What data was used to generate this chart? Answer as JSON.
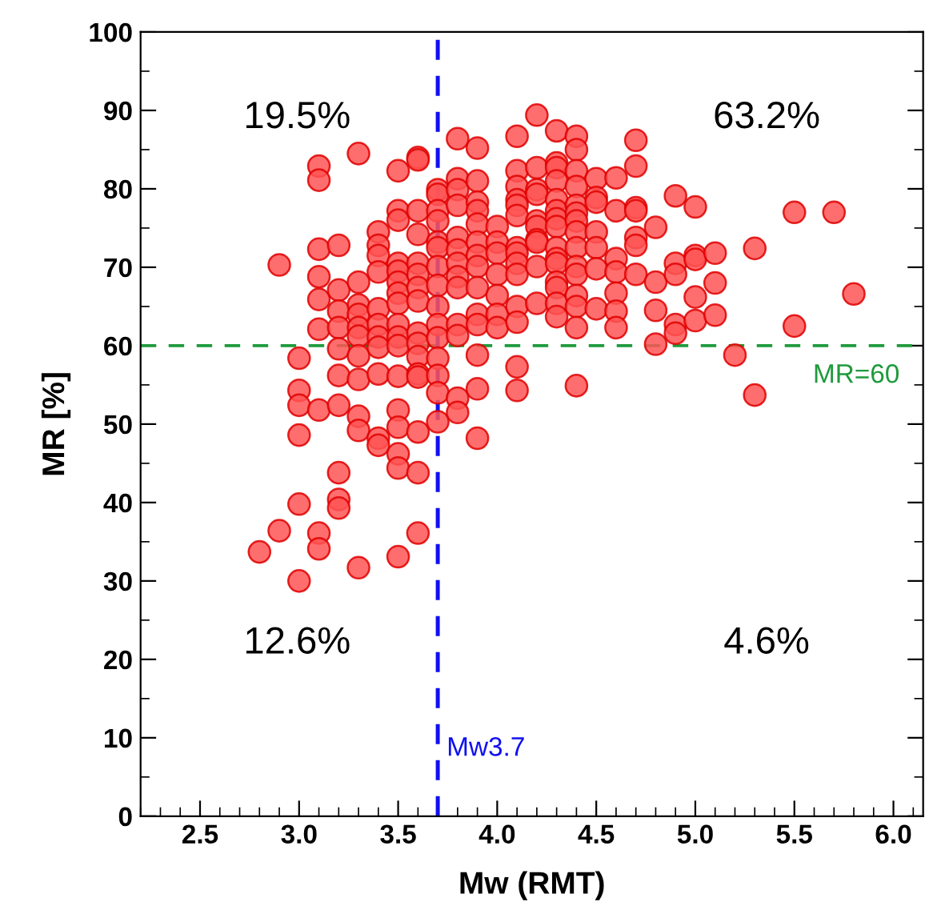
{
  "chart_data": {
    "type": "scatter",
    "xlabel": "Mw (RMT)",
    "ylabel": "MR [%]",
    "marker": "circle",
    "grid": false,
    "legend": false,
    "xlim": [
      2.2,
      6.15
    ],
    "ylim": [
      0,
      100
    ],
    "xticks": [
      {
        "value": 2.5,
        "label": "2.5"
      },
      {
        "value": 3.0,
        "label": "3.0"
      },
      {
        "value": 3.5,
        "label": "3.5"
      },
      {
        "value": 4.0,
        "label": "4.0"
      },
      {
        "value": 4.5,
        "label": "4.5"
      },
      {
        "value": 5.0,
        "label": "5.0"
      },
      {
        "value": 5.5,
        "label": "5.5"
      },
      {
        "value": 6.0,
        "label": "6.0"
      }
    ],
    "yticks": [
      0,
      10,
      20,
      30,
      40,
      50,
      60,
      70,
      80,
      90,
      100
    ],
    "annotations": [
      "19.5%",
      "63.2%",
      "12.6%",
      "4.6%"
    ],
    "ref_lines": [
      {
        "axis": "y",
        "value": 60,
        "label": "MR=60",
        "color": "#1e9a3c",
        "line_style": "dashed"
      },
      {
        "axis": "x",
        "value": 3.7,
        "label": "Mw3.7",
        "color": "#1010f0",
        "line_style": "dashed"
      }
    ],
    "series": [
      {
        "color": "#ff5555",
        "x": [
          2.8,
          2.9,
          2.9,
          3.0,
          3.0,
          3.0,
          3.0,
          3.0,
          3.0,
          3.1,
          3.1,
          3.1,
          3.1,
          3.1,
          3.1,
          3.1,
          3.1,
          3.1,
          3.2,
          3.2,
          3.2,
          3.2,
          3.2,
          3.2,
          3.2,
          3.2,
          3.2,
          3.2,
          3.3,
          3.3,
          3.3,
          3.3,
          3.3,
          3.3,
          3.3,
          3.3,
          3.3,
          3.3,
          3.3,
          3.4,
          3.4,
          3.4,
          3.4,
          3.4,
          3.4,
          3.4,
          3.4,
          3.4,
          3.4,
          3.4,
          3.5,
          3.5,
          3.5,
          3.5,
          3.5,
          3.5,
          3.5,
          3.5,
          3.5,
          3.5,
          3.5,
          3.5,
          3.5,
          3.5,
          3.5,
          3.5,
          3.5,
          3.6,
          3.6,
          3.6,
          3.6,
          3.6,
          3.6,
          3.6,
          3.6,
          3.6,
          3.6,
          3.6,
          3.6,
          3.6,
          3.6,
          3.6,
          3.6,
          3.7,
          3.7,
          3.7,
          3.7,
          3.7,
          3.7,
          3.7,
          3.7,
          3.7,
          3.7,
          3.7,
          3.7,
          3.7,
          3.7,
          3.7,
          3.8,
          3.8,
          3.8,
          3.8,
          3.8,
          3.8,
          3.8,
          3.8,
          3.8,
          3.8,
          3.8,
          3.8,
          3.8,
          3.9,
          3.9,
          3.9,
          3.9,
          3.9,
          3.9,
          3.9,
          3.9,
          3.9,
          3.9,
          3.9,
          3.9,
          3.9,
          3.9,
          4.0,
          4.0,
          4.0,
          4.0,
          4.0,
          4.0,
          4.0,
          4.1,
          4.1,
          4.1,
          4.1,
          4.1,
          4.1,
          4.1,
          4.1,
          4.1,
          4.1,
          4.1,
          4.1,
          4.1,
          4.1,
          4.2,
          4.2,
          4.2,
          4.2,
          4.2,
          4.2,
          4.2,
          4.2,
          4.2,
          4.2,
          4.3,
          4.3,
          4.3,
          4.3,
          4.3,
          4.3,
          4.3,
          4.3,
          4.3,
          4.3,
          4.3,
          4.3,
          4.3,
          4.3,
          4.3,
          4.4,
          4.4,
          4.4,
          4.4,
          4.4,
          4.4,
          4.4,
          4.4,
          4.4,
          4.4,
          4.4,
          4.4,
          4.4,
          4.4,
          4.4,
          4.5,
          4.5,
          4.5,
          4.5,
          4.5,
          4.5,
          4.5,
          4.6,
          4.6,
          4.6,
          4.6,
          4.6,
          4.6,
          4.6,
          4.7,
          4.7,
          4.7,
          4.7,
          4.7,
          4.7,
          4.7,
          4.8,
          4.8,
          4.8,
          4.8,
          4.9,
          4.9,
          4.9,
          4.9,
          4.9,
          5.0,
          5.0,
          5.0,
          5.0,
          5.0,
          5.1,
          5.1,
          5.1,
          5.2,
          5.3,
          5.3,
          5.5,
          5.5,
          5.7,
          5.8
        ],
        "values": [
          33.7,
          70.3,
          36.4,
          58.4,
          54.3,
          52.4,
          48.6,
          39.8,
          30.0,
          82.9,
          81.1,
          72.3,
          68.8,
          65.9,
          62.1,
          51.8,
          36.1,
          34.1,
          72.8,
          67.1,
          64.4,
          62.3,
          59.6,
          56.2,
          52.4,
          43.8,
          40.4,
          39.3,
          84.5,
          68.1,
          65.2,
          64.0,
          62.3,
          61.2,
          58.7,
          55.7,
          51.0,
          49.2,
          31.7,
          74.5,
          72.8,
          71.5,
          69.4,
          64.7,
          62.7,
          61.1,
          59.8,
          56.4,
          48.2,
          47.3,
          82.3,
          77.2,
          76.0,
          70.5,
          69.5,
          68.1,
          66.7,
          65.4,
          62.7,
          61.1,
          60.0,
          56.1,
          51.8,
          49.6,
          46.2,
          44.4,
          33.1,
          84.0,
          83.7,
          77.2,
          74.2,
          70.5,
          69.1,
          67.4,
          65.7,
          61.6,
          60.3,
          58.6,
          56.4,
          56.0,
          49.0,
          43.8,
          36.1,
          79.9,
          79.3,
          77.2,
          75.9,
          73.2,
          72.5,
          70.1,
          67.7,
          65.0,
          62.7,
          61.0,
          58.4,
          56.2,
          54.0,
          50.3,
          86.4,
          81.3,
          79.9,
          77.9,
          73.8,
          72.2,
          70.5,
          68.8,
          67.4,
          62.7,
          61.3,
          53.3,
          51.5,
          85.2,
          81.0,
          78.3,
          77.2,
          75.5,
          73.2,
          71.5,
          70.1,
          67.4,
          64.0,
          62.7,
          58.8,
          54.5,
          48.2,
          75.2,
          73.2,
          71.8,
          69.1,
          66.4,
          64.0,
          62.3,
          86.7,
          82.3,
          80.3,
          78.6,
          77.9,
          76.6,
          72.5,
          71.8,
          70.5,
          69.1,
          65.0,
          63.0,
          57.3,
          54.3,
          89.4,
          82.7,
          79.9,
          79.3,
          75.9,
          75.2,
          73.5,
          73.2,
          70.1,
          65.4,
          87.4,
          83.3,
          82.7,
          81.0,
          78.6,
          77.2,
          76.2,
          75.2,
          72.5,
          71.1,
          70.5,
          68.1,
          67.4,
          65.4,
          63.7,
          86.7,
          85.0,
          82.3,
          80.3,
          77.9,
          76.9,
          75.9,
          74.5,
          72.5,
          70.1,
          69.1,
          66.4,
          65.0,
          62.3,
          54.9,
          81.3,
          78.9,
          78.3,
          74.5,
          72.5,
          69.8,
          64.7,
          81.4,
          77.2,
          71.1,
          69.4,
          66.7,
          64.4,
          62.3,
          86.2,
          82.9,
          77.6,
          77.2,
          73.8,
          72.8,
          69.1,
          75.1,
          68.1,
          64.5,
          60.2,
          79.1,
          70.5,
          69.1,
          62.7,
          61.6,
          77.7,
          71.5,
          71.0,
          66.2,
          63.2,
          71.8,
          68.0,
          63.9,
          58.8,
          72.4,
          53.7,
          77.0,
          62.5,
          77.0,
          66.6
        ]
      }
    ]
  }
}
